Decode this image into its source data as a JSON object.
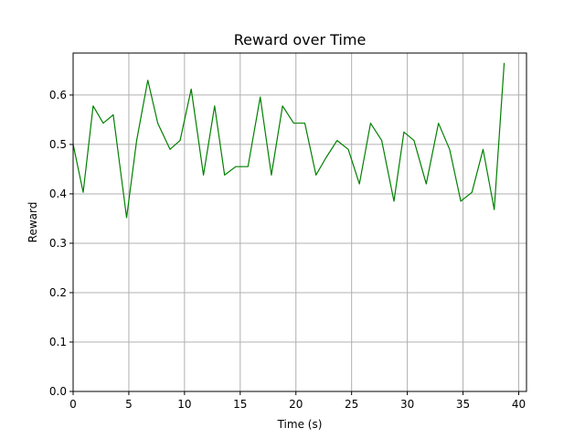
{
  "chart_data": {
    "type": "line",
    "title": "Reward over Time",
    "xlabel": "Time (s)",
    "ylabel": "Reward",
    "xlim": [
      0,
      40.7
    ],
    "ylim": [
      0,
      0.685
    ],
    "xticks": [
      0,
      5,
      10,
      15,
      20,
      25,
      30,
      35,
      40
    ],
    "yticks": [
      0.0,
      0.1,
      0.2,
      0.3,
      0.4,
      0.5,
      0.6
    ],
    "grid": true,
    "series": [
      {
        "color": "#008000",
        "x": [
          0,
          0.9,
          1.8,
          2.7,
          3.6,
          4.8,
          5.7,
          6.7,
          7.6,
          8.7,
          9.6,
          10.6,
          11.7,
          12.7,
          13.6,
          14.6,
          15.7,
          16.8,
          17.8,
          18.8,
          19.8,
          20.8,
          21.8,
          22.7,
          23.7,
          24.7,
          25.7,
          26.7,
          27.7,
          28.8,
          29.7,
          30.6,
          31.7,
          32.8,
          33.8,
          34.8,
          35.8,
          36.8,
          37.8,
          38.7
        ],
        "y": [
          0.5,
          0.403,
          0.578,
          0.543,
          0.56,
          0.352,
          0.508,
          0.63,
          0.543,
          0.49,
          0.508,
          0.612,
          0.438,
          0.578,
          0.438,
          0.455,
          0.455,
          0.596,
          0.438,
          0.578,
          0.543,
          0.543,
          0.438,
          0.473,
          0.508,
          0.49,
          0.42,
          0.543,
          0.508,
          0.385,
          0.525,
          0.508,
          0.42,
          0.543,
          0.49,
          0.385,
          0.403,
          0.49,
          0.368,
          0.665
        ]
      }
    ]
  }
}
